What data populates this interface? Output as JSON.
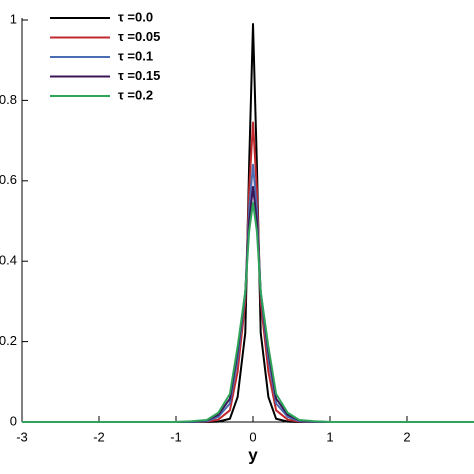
{
  "chart_data": {
    "type": "line",
    "x_label": "y",
    "x": [
      -3,
      -1.5,
      -1,
      -0.8,
      -0.6,
      -0.45,
      -0.3,
      -0.2,
      -0.1,
      -0.05,
      0,
      0.05,
      0.1,
      0.2,
      0.3,
      0.45,
      0.6,
      0.8,
      1,
      1.5,
      2.87
    ],
    "series": [
      {
        "name": "τ =0.0",
        "color": "#000000",
        "values": [
          0,
          0,
          0,
          0,
          0,
          0.001,
          0.008,
          0.062,
          0.222,
          0.642,
          0.99,
          0.642,
          0.222,
          0.062,
          0.008,
          0.001,
          0,
          0,
          0,
          0,
          0
        ]
      },
      {
        "name": "τ =0.05",
        "color": "#c0282d",
        "values": [
          0,
          0,
          0,
          0,
          0.001,
          0.006,
          0.029,
          0.125,
          0.3,
          0.578,
          0.745,
          0.578,
          0.3,
          0.125,
          0.029,
          0.006,
          0.001,
          0,
          0,
          0,
          0
        ]
      },
      {
        "name": "τ =0.1",
        "color": "#4a6cb3",
        "values": [
          0,
          0,
          0,
          0,
          0.002,
          0.013,
          0.046,
          0.157,
          0.319,
          0.53,
          0.64,
          0.53,
          0.319,
          0.157,
          0.046,
          0.013,
          0.002,
          0,
          0,
          0,
          0
        ]
      },
      {
        "name": "τ =0.15",
        "color": "#3b1656",
        "values": [
          0,
          0,
          0,
          0.001,
          0.004,
          0.018,
          0.058,
          0.175,
          0.323,
          0.499,
          0.585,
          0.499,
          0.323,
          0.175,
          0.058,
          0.018,
          0.004,
          0.001,
          0,
          0,
          0
        ]
      },
      {
        "name": "τ =0.2",
        "color": "#2ea55a",
        "values": [
          0,
          0,
          0,
          0.002,
          0.005,
          0.023,
          0.07,
          0.187,
          0.324,
          0.475,
          0.545,
          0.475,
          0.324,
          0.187,
          0.07,
          0.023,
          0.005,
          0.002,
          0,
          0,
          0
        ]
      }
    ],
    "xlim": [
      -3,
      2.87
    ],
    "ylim": [
      0,
      1
    ],
    "xticks": [
      -3,
      -2,
      -1,
      0,
      1,
      2
    ],
    "yticks": [
      0,
      0.2,
      0.4,
      0.6,
      0.8,
      1
    ],
    "legend": "upper-left"
  }
}
